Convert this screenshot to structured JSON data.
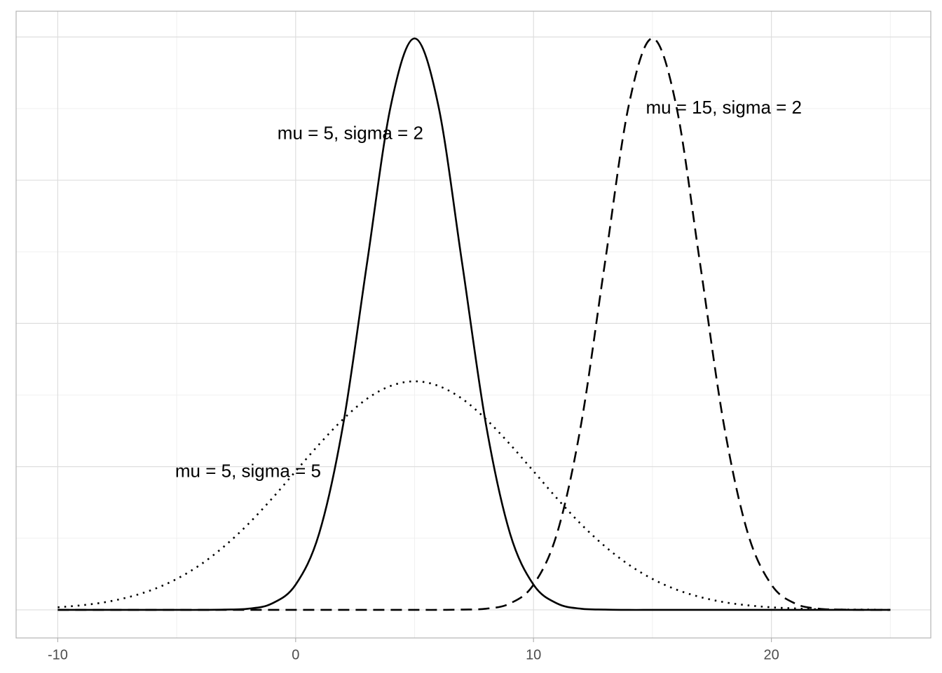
{
  "chart_data": {
    "type": "line",
    "x": [
      -10,
      -9,
      -8,
      -7,
      -6,
      -5,
      -4,
      -3,
      -2,
      -1,
      0,
      1,
      2,
      3,
      4,
      5,
      6,
      7,
      8,
      9,
      10,
      11,
      12,
      13,
      14,
      15,
      16,
      17,
      18,
      19,
      20,
      21,
      22,
      23,
      24,
      25
    ],
    "series": [
      {
        "color": "#000000",
        "linetype": "solid",
        "values": [
          0,
          0,
          0,
          0,
          0,
          0,
          0,
          0.0001,
          0.0004,
          0.0022,
          0.0088,
          0.027,
          0.0648,
          0.121,
          0.176,
          0.1995,
          0.176,
          0.121,
          0.0648,
          0.027,
          0.0088,
          0.0022,
          0.0004,
          0.0001,
          0,
          0,
          0,
          0,
          0,
          0,
          0,
          0,
          0,
          0,
          0,
          0
        ]
      },
      {
        "color": "#000000",
        "linetype": "dashed",
        "values": [
          0,
          0,
          0,
          0,
          0,
          0,
          0,
          0,
          0,
          0,
          0,
          0,
          0,
          0,
          0,
          0,
          0,
          0.0001,
          0.0004,
          0.0022,
          0.0088,
          0.027,
          0.0648,
          0.121,
          0.176,
          0.1995,
          0.176,
          0.121,
          0.0648,
          0.027,
          0.0088,
          0.0022,
          0.0004,
          0.0001,
          0,
          0
        ]
      },
      {
        "color": "#000000",
        "linetype": "dotted",
        "values": [
          0.0009,
          0.0016,
          0.0027,
          0.0045,
          0.0071,
          0.0108,
          0.0158,
          0.0222,
          0.0299,
          0.0388,
          0.0484,
          0.0579,
          0.0666,
          0.0737,
          0.0782,
          0.0798,
          0.0782,
          0.0737,
          0.0666,
          0.0579,
          0.0484,
          0.0388,
          0.0299,
          0.0222,
          0.0158,
          0.0108,
          0.0071,
          0.0045,
          0.0027,
          0.0016,
          0.0009,
          0.0005,
          0.0002,
          0.0001,
          0.0001,
          0
        ]
      }
    ],
    "annotations": [
      {
        "text": "mu = 5, sigma = 2",
        "x": 2.3,
        "y": 0.166
      },
      {
        "text": "mu = 15, sigma = 2",
        "x": 18,
        "y": 0.175
      },
      {
        "text": "mu = 5, sigma = 5",
        "x": -2,
        "y": 0.048
      }
    ],
    "xlim": [
      -11.75,
      26.7
    ],
    "xticks": [
      -10,
      0,
      10,
      20
    ],
    "x_minor_grid": [
      -5,
      5,
      15,
      25
    ],
    "ylim": [
      -0.0098,
      0.209
    ],
    "yticks": [
      0,
      0.05,
      0.1,
      0.15,
      0.2
    ],
    "y_minor_grid": [
      0.025,
      0.075,
      0.125,
      0.175
    ],
    "show_ytick_labels": false,
    "grid": true
  }
}
